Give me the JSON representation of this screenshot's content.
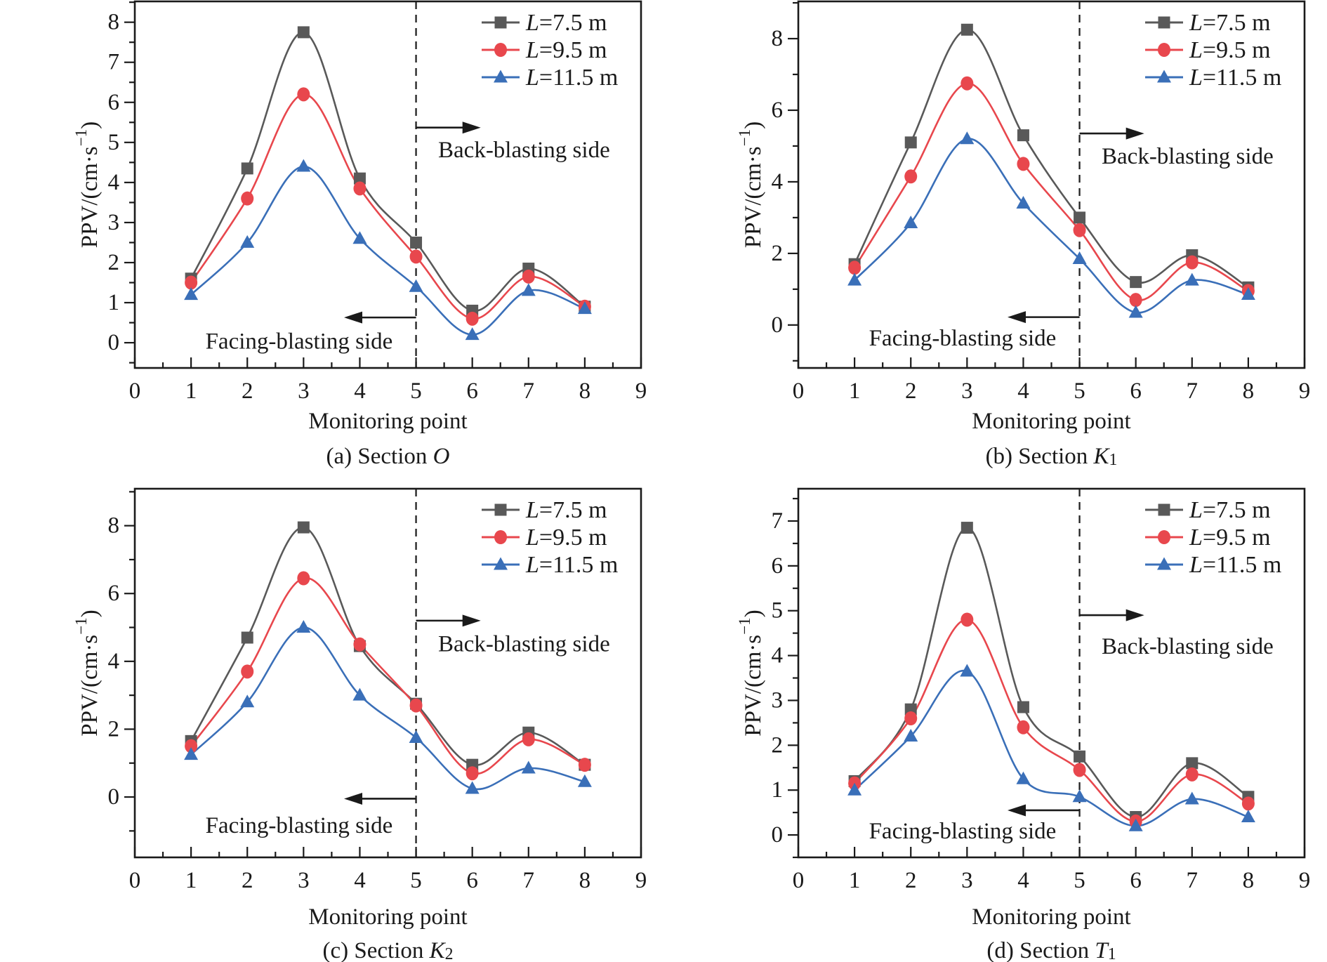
{
  "figure": {
    "description": "Four-panel figure of PPV attenuation curves at monitoring points for different tunnel face distances L",
    "colors": {
      "gray_series": "#595959",
      "red_series": "#e8474d",
      "blue_series": "#3a6fb8",
      "axis": "#1a1a1a",
      "background": "#ffffff"
    },
    "legend": {
      "entries": [
        "L=7.5 m",
        "L=9.5 m",
        "L=11.5 m"
      ]
    }
  },
  "chart_data": [
    {
      "type": "line",
      "panel": "a",
      "title": "(a) Section O",
      "caption": {
        "prefix": "(a) Section ",
        "symbol": "O",
        "subscript": ""
      },
      "xlabel": "Monitoring point",
      "ylabel": {
        "pre": "PPV/(cm·s",
        "sup": "−1",
        "post": ")"
      },
      "x": [
        1,
        2,
        3,
        4,
        5,
        6,
        7,
        8
      ],
      "series": [
        {
          "name": "L=7.5 m",
          "marker": "square",
          "color": "#595959",
          "values": [
            1.6,
            4.35,
            7.75,
            4.1,
            2.5,
            0.8,
            1.85,
            0.9
          ]
        },
        {
          "name": "L=9.5 m",
          "marker": "circle",
          "color": "#e8474d",
          "values": [
            1.5,
            3.6,
            6.2,
            3.85,
            2.15,
            0.6,
            1.65,
            0.9
          ]
        },
        {
          "name": "L=11.5 m",
          "marker": "triangle",
          "color": "#3a6fb8",
          "values": [
            1.2,
            2.5,
            4.4,
            2.6,
            1.4,
            0.2,
            1.3,
            0.85
          ]
        }
      ],
      "x_axis": {
        "min": 0,
        "max": 9,
        "major": 1,
        "minor": 0.5,
        "labels": [
          "0",
          "1",
          "2",
          "3",
          "4",
          "5",
          "6",
          "7",
          "8",
          "9"
        ]
      },
      "y_axis": {
        "min": -0.63,
        "max": 8.52,
        "major": 1,
        "minor": 0.5,
        "labels": [
          "0",
          "1",
          "2",
          "3",
          "4",
          "5",
          "6",
          "7",
          "8"
        ]
      },
      "divider_x": 5,
      "annotations": {
        "back": {
          "label": "Back-blasting side",
          "arrow_y": 5.37,
          "arrow_from_x": 5,
          "arrow_to_x": 6.15,
          "text_x": 6.92,
          "text_y": 4.8
        },
        "facing": {
          "label": "Facing-blasting side",
          "arrow_y": 0.63,
          "arrow_from_x": 5,
          "arrow_to_x": 3.72,
          "text_x": 2.92,
          "text_y": 0.03
        }
      }
    },
    {
      "type": "line",
      "panel": "b",
      "title": "(b) Section K1",
      "caption": {
        "prefix": "(b) Section ",
        "symbol": "K",
        "subscript": "1"
      },
      "xlabel": "Monitoring point",
      "ylabel": {
        "pre": "PPV/(cm·s",
        "sup": "−1",
        "post": ")"
      },
      "x": [
        1,
        2,
        3,
        4,
        5,
        6,
        7,
        8
      ],
      "series": [
        {
          "name": "L=7.5 m",
          "marker": "square",
          "color": "#595959",
          "values": [
            1.7,
            5.1,
            8.25,
            5.3,
            3.0,
            1.2,
            1.95,
            1.05
          ]
        },
        {
          "name": "L=9.5 m",
          "marker": "circle",
          "color": "#e8474d",
          "values": [
            1.6,
            4.15,
            6.75,
            4.5,
            2.65,
            0.7,
            1.75,
            0.95
          ]
        },
        {
          "name": "L=11.5 m",
          "marker": "triangle",
          "color": "#3a6fb8",
          "values": [
            1.25,
            2.85,
            5.2,
            3.4,
            1.85,
            0.35,
            1.25,
            0.85
          ]
        }
      ],
      "x_axis": {
        "min": 0,
        "max": 9,
        "major": 1,
        "minor": 0.5,
        "labels": [
          "0",
          "1",
          "2",
          "3",
          "4",
          "5",
          "6",
          "7",
          "8",
          "9"
        ]
      },
      "y_axis": {
        "min": -1.2,
        "max": 9.04,
        "major": 2,
        "minor": 1,
        "labels": [
          "0",
          "2",
          "4",
          "6",
          "8"
        ]
      },
      "divider_x": 5,
      "annotations": {
        "back": {
          "label": "Back-blasting side",
          "arrow_y": 5.35,
          "arrow_from_x": 5,
          "arrow_to_x": 6.15,
          "text_x": 6.92,
          "text_y": 4.7
        },
        "facing": {
          "label": "Facing-blasting side",
          "arrow_y": 0.22,
          "arrow_from_x": 5,
          "arrow_to_x": 3.72,
          "text_x": 2.92,
          "text_y": -0.38
        }
      }
    },
    {
      "type": "line",
      "panel": "c",
      "title": "(c) Section K2",
      "caption": {
        "prefix": "(c) Section ",
        "symbol": "K",
        "subscript": "2"
      },
      "xlabel": "Monitoring point",
      "ylabel": {
        "pre": "PPV/(cm·s",
        "sup": "−1",
        "post": ")"
      },
      "x": [
        1,
        2,
        3,
        4,
        5,
        6,
        7,
        8
      ],
      "series": [
        {
          "name": "L=7.5 m",
          "marker": "square",
          "color": "#595959",
          "values": [
            1.65,
            4.7,
            7.95,
            4.45,
            2.75,
            0.95,
            1.9,
            0.95
          ]
        },
        {
          "name": "L=9.5 m",
          "marker": "circle",
          "color": "#e8474d",
          "values": [
            1.5,
            3.7,
            6.45,
            4.5,
            2.7,
            0.7,
            1.7,
            0.95
          ]
        },
        {
          "name": "L=11.5 m",
          "marker": "triangle",
          "color": "#3a6fb8",
          "values": [
            1.25,
            2.8,
            5.0,
            3.0,
            1.75,
            0.25,
            0.85,
            0.45
          ]
        }
      ],
      "x_axis": {
        "min": 0,
        "max": 9,
        "major": 1,
        "minor": 0.5,
        "labels": [
          "0",
          "1",
          "2",
          "3",
          "4",
          "5",
          "6",
          "7",
          "8",
          "9"
        ]
      },
      "y_axis": {
        "min": -1.78,
        "max": 9.09,
        "major": 2,
        "minor": 1,
        "labels": [
          "0",
          "2",
          "4",
          "6",
          "8"
        ]
      },
      "divider_x": 5,
      "annotations": {
        "back": {
          "label": "Back-blasting side",
          "arrow_y": 5.2,
          "arrow_from_x": 5,
          "arrow_to_x": 6.15,
          "text_x": 6.92,
          "text_y": 4.5
        },
        "facing": {
          "label": "Facing-blasting side",
          "arrow_y": -0.05,
          "arrow_from_x": 5,
          "arrow_to_x": 3.72,
          "text_x": 2.92,
          "text_y": -0.85
        }
      }
    },
    {
      "type": "line",
      "panel": "d",
      "title": "(d) Section T1",
      "caption": {
        "prefix": "(d) Section ",
        "symbol": "T",
        "subscript": "1"
      },
      "xlabel": "Monitoring point",
      "ylabel": {
        "pre": "PPV/(cm·s",
        "sup": "−1",
        "post": ")"
      },
      "x": [
        1,
        2,
        3,
        4,
        5,
        6,
        7,
        8
      ],
      "series": [
        {
          "name": "L=7.5 m",
          "marker": "square",
          "color": "#595959",
          "values": [
            1.2,
            2.8,
            6.85,
            2.85,
            1.75,
            0.4,
            1.6,
            0.85
          ]
        },
        {
          "name": "L=9.5 m",
          "marker": "circle",
          "color": "#e8474d",
          "values": [
            1.15,
            2.6,
            4.8,
            2.4,
            1.45,
            0.3,
            1.35,
            0.7
          ]
        },
        {
          "name": "L=11.5 m",
          "marker": "triangle",
          "color": "#3a6fb8",
          "values": [
            1.0,
            2.2,
            3.65,
            1.25,
            0.85,
            0.2,
            0.8,
            0.4
          ]
        }
      ],
      "x_axis": {
        "min": 0,
        "max": 9,
        "major": 1,
        "minor": 0.5,
        "labels": [
          "0",
          "1",
          "2",
          "3",
          "4",
          "5",
          "6",
          "7",
          "8",
          "9"
        ]
      },
      "y_axis": {
        "min": -0.5,
        "max": 7.72,
        "major": 1,
        "minor": 0.5,
        "labels": [
          "0",
          "1",
          "2",
          "3",
          "4",
          "5",
          "6",
          "7"
        ]
      },
      "divider_x": 5,
      "annotations": {
        "back": {
          "label": "Back-blasting side",
          "arrow_y": 4.9,
          "arrow_from_x": 5,
          "arrow_to_x": 6.15,
          "text_x": 6.92,
          "text_y": 4.2
        },
        "facing": {
          "label": "Facing-blasting side",
          "arrow_y": 0.55,
          "arrow_from_x": 5,
          "arrow_to_x": 3.72,
          "text_x": 2.92,
          "text_y": 0.08
        }
      }
    }
  ]
}
